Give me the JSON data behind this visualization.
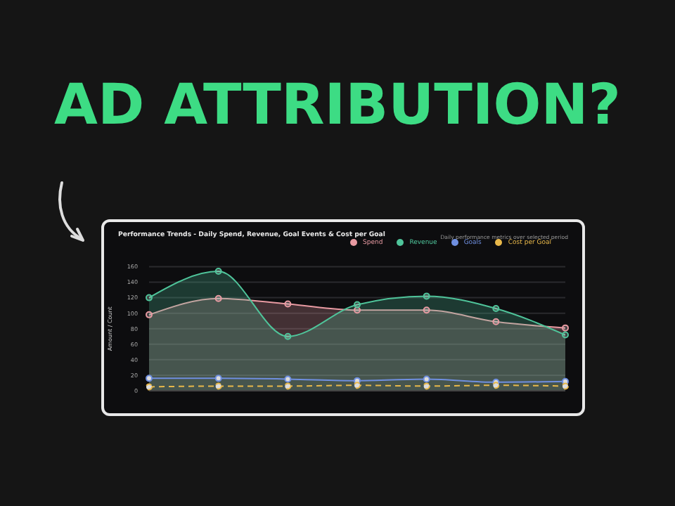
{
  "chart_data": {
    "type": "line",
    "title": "AD ATTRIBUTION?",
    "subtitle": "Performance Trends - Daily Spend, Revenue, Goal Events & Cost per Goal",
    "annotations": [
      "Daily performance metrics over selected period"
    ],
    "ylabel": "Amount / Count",
    "categories": [
      null,
      null,
      null,
      null,
      null,
      null,
      null
    ],
    "series": [
      {
        "name": "Spend",
        "type": "area",
        "color": "#e89aa2",
        "values": [
          98,
          119,
          112,
          104,
          104,
          89,
          81
        ]
      },
      {
        "name": "Revenue",
        "type": "area",
        "color": "#4fc49a",
        "values": [
          120,
          154,
          70,
          111,
          122,
          106,
          72
        ]
      },
      {
        "name": "Goals",
        "color": "#6f8fe0",
        "values": [
          16,
          16,
          15,
          13,
          15,
          11,
          12
        ]
      },
      {
        "name": "Cost per Goal",
        "color": "#e8b84a",
        "line_style": "dashed",
        "values": [
          5,
          6,
          6,
          7,
          6,
          7,
          6
        ]
      }
    ],
    "ylim": [
      0,
      160
    ],
    "yticks": [
      0,
      20,
      40,
      60,
      80,
      100,
      120,
      140,
      160
    ],
    "grid": "y",
    "legend": "top right",
    "marker": "circle"
  }
}
